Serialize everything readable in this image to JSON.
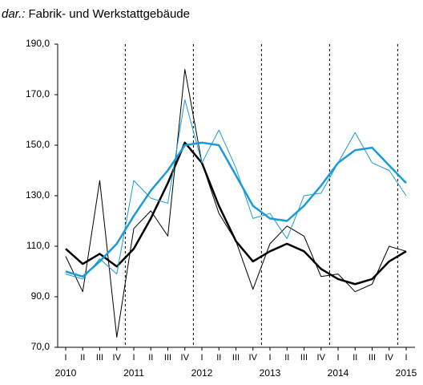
{
  "chart_data": {
    "type": "line",
    "title_prefix": "dar.:",
    "title": "Fabrik- und Werkstattgebäude",
    "categories": [
      "I",
      "II",
      "III",
      "IV",
      "I",
      "II",
      "III",
      "IV",
      "I",
      "II",
      "III",
      "IV",
      "I",
      "II",
      "III",
      "IV",
      "I",
      "II",
      "III",
      "IV",
      "I"
    ],
    "year_labels": [
      "2010",
      null,
      null,
      null,
      "2011",
      null,
      null,
      null,
      "2012",
      null,
      null,
      null,
      "2013",
      null,
      null,
      null,
      "2014",
      null,
      null,
      null,
      "2015"
    ],
    "year_separators": true,
    "ylim": [
      70,
      190
    ],
    "yticks": [
      {
        "value": 70,
        "label": "70,0"
      },
      {
        "value": 90,
        "label": "90,0"
      },
      {
        "value": 110,
        "label": "110,0"
      },
      {
        "value": 130,
        "label": "130,0"
      },
      {
        "value": 150,
        "label": "150,0"
      },
      {
        "value": 170,
        "label": "170,0"
      },
      {
        "value": 190,
        "label": "190,0"
      }
    ],
    "series": [
      {
        "color": "#000000",
        "width": 1,
        "values": [
          106,
          92,
          136,
          74,
          117,
          124,
          114,
          180,
          143,
          123,
          112,
          93,
          111,
          118,
          114,
          98,
          99,
          92,
          95,
          110,
          108
        ]
      },
      {
        "color": "#000000",
        "width": 2.5,
        "values": [
          109,
          103,
          107,
          102,
          109,
          121,
          135,
          151,
          143,
          126,
          112,
          104,
          108,
          111,
          108,
          101,
          97,
          95,
          97,
          104,
          108
        ]
      },
      {
        "color": "#1a9bd7",
        "width": 1,
        "values": [
          99,
          97,
          105,
          99,
          136,
          129,
          127,
          168,
          143,
          156,
          141,
          121,
          123,
          113,
          130,
          131,
          143,
          155,
          143,
          140,
          130
        ]
      },
      {
        "color": "#1a9bd7",
        "width": 2.5,
        "values": [
          100,
          98,
          104,
          111,
          122,
          132,
          140,
          150,
          151,
          150,
          138,
          126,
          121,
          120,
          126,
          134,
          143,
          148,
          149,
          142,
          135
        ]
      }
    ]
  }
}
